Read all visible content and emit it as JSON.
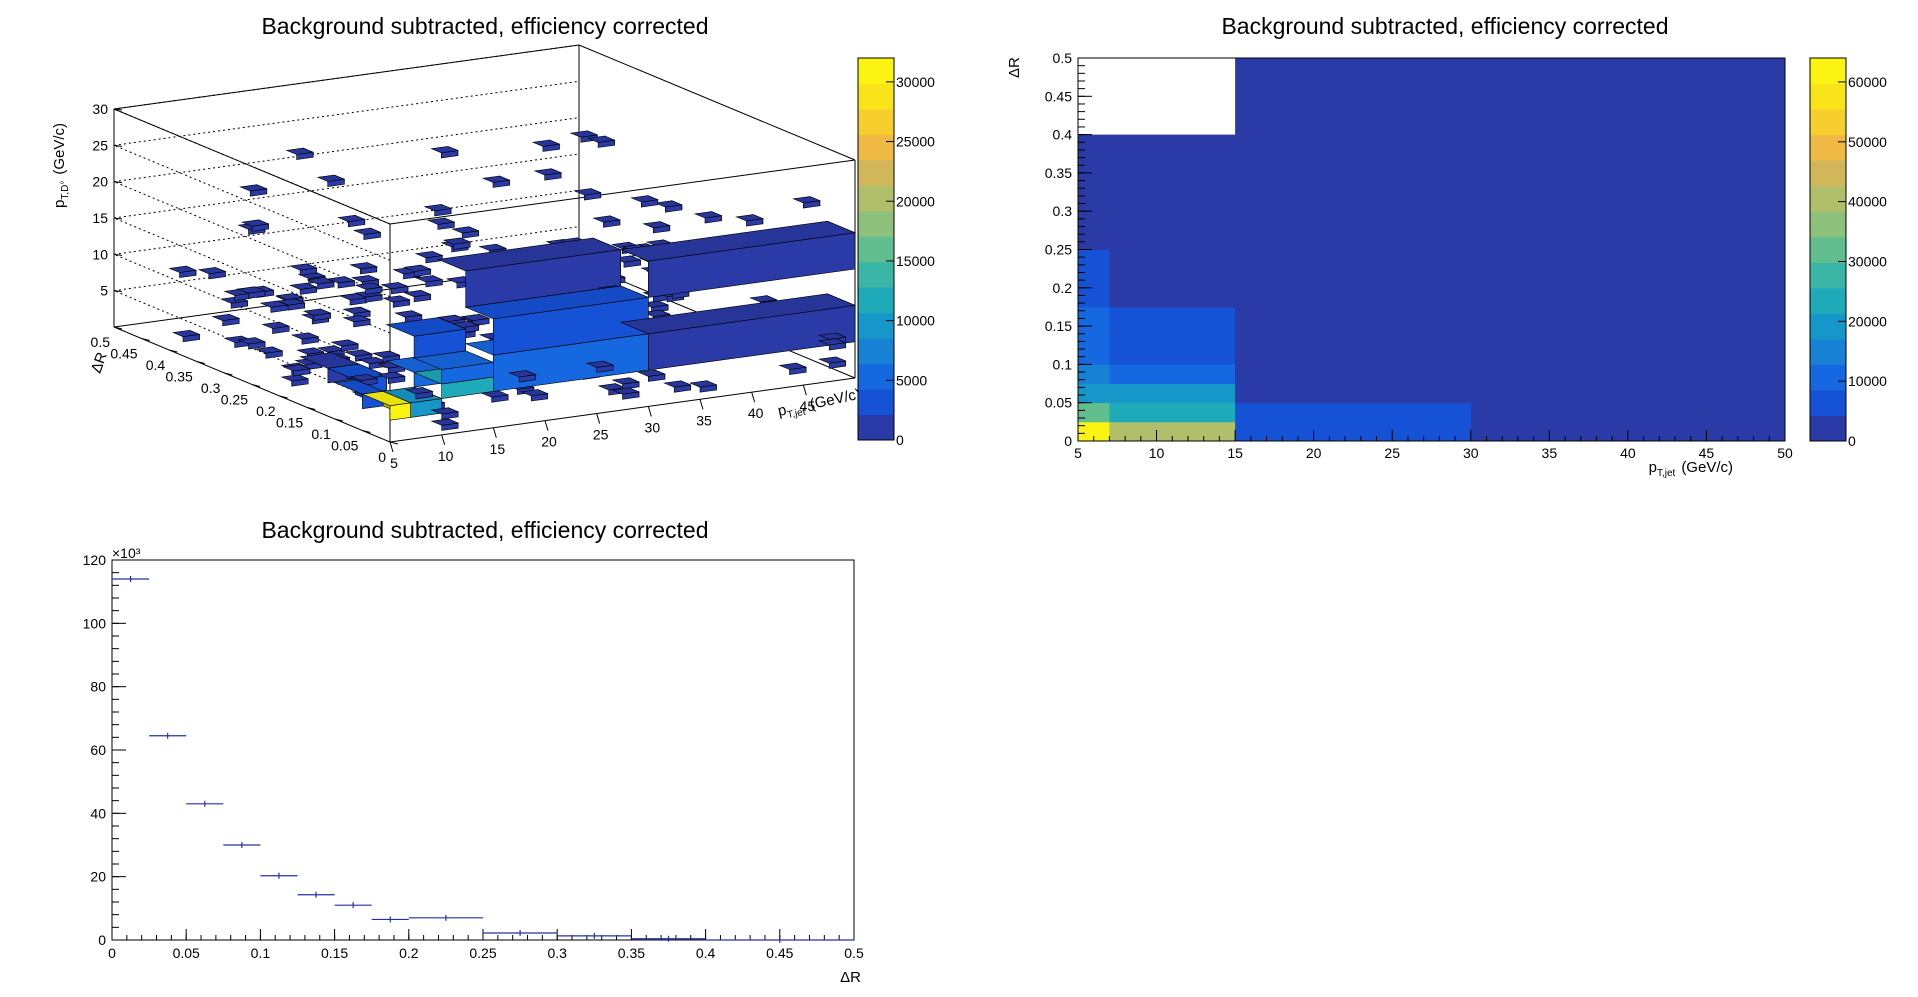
{
  "charts_meta": {
    "colors": {
      "palette": [
        "#2a3aa6",
        "#1652d6",
        "#1568e0",
        "#1781d6",
        "#1697c9",
        "#1eaab8",
        "#3bb6a6",
        "#62be8f",
        "#8ec17c",
        "#b1bf6b",
        "#d2b75a",
        "#f0b944",
        "#f6cf2f",
        "#f9e319",
        "#fbf311"
      ],
      "frame": "#000000",
      "errbar": "#2431a8"
    }
  },
  "chart_data": [
    {
      "id": "lego3d",
      "type": "lego3d",
      "title": "Background subtracted, efficiency corrected",
      "xlabel": "p",
      "xlabel_sub": "T,jet",
      "xlabel_unit": "(GeV/c)",
      "ylabel": "ΔR",
      "zlabel": "p",
      "zlabel_sub": "T,D°",
      "zlabel_unit": "(GeV/c)",
      "xlim": [
        5,
        50
      ],
      "ylim": [
        0,
        0.5
      ],
      "zlim": [
        0,
        30
      ],
      "x_ticks": [
        "5",
        "10",
        "15",
        "20",
        "25",
        "30",
        "35",
        "40",
        "45"
      ],
      "y_ticks": [
        "0",
        "0.05",
        "0.1",
        "0.15",
        "0.2",
        "0.25",
        "0.3",
        "0.35",
        "0.4",
        "0.45",
        "0.5"
      ],
      "z_ticks": [
        "5",
        "10",
        "15",
        "20",
        "25",
        "30"
      ],
      "colorbar": {
        "min": 0,
        "max": 32000,
        "ticks": [
          "0",
          "5000",
          "10000",
          "15000",
          "20000",
          "25000",
          "30000"
        ]
      },
      "boxes": [
        {
          "x": [
            5,
            7
          ],
          "y": [
            0,
            0.05
          ],
          "z": [
            3,
            5
          ],
          "v": 31000
        },
        {
          "x": [
            7,
            10
          ],
          "y": [
            0,
            0.05
          ],
          "z": [
            3,
            5
          ],
          "v": 9000
        },
        {
          "x": [
            10,
            15
          ],
          "y": [
            0,
            0.05
          ],
          "z": [
            5,
            7
          ],
          "v": 12000
        },
        {
          "x": [
            10,
            15
          ],
          "y": [
            0,
            0.05
          ],
          "z": [
            7,
            9
          ],
          "v": 6000
        },
        {
          "x": [
            10,
            15
          ],
          "y": [
            0.05,
            0.1
          ],
          "z": [
            5,
            7
          ],
          "v": 5000
        },
        {
          "x": [
            10,
            15
          ],
          "y": [
            0.05,
            0.1
          ],
          "z": [
            9,
            12
          ],
          "v": 4000
        },
        {
          "x": [
            15,
            30
          ],
          "y": [
            0,
            0.05
          ],
          "z": [
            5,
            10
          ],
          "v": 5000
        },
        {
          "x": [
            15,
            30
          ],
          "y": [
            0,
            0.05
          ],
          "z": [
            10,
            15
          ],
          "v": 2500
        },
        {
          "x": [
            30,
            50
          ],
          "y": [
            0,
            0.05
          ],
          "z": [
            5,
            10
          ],
          "v": 1500
        },
        {
          "x": [
            15,
            30
          ],
          "y": [
            0.05,
            0.1
          ],
          "z": [
            15,
            20
          ],
          "v": 1800
        },
        {
          "x": [
            30,
            50
          ],
          "y": [
            0,
            0.05
          ],
          "z": [
            15,
            20
          ],
          "v": 1400
        },
        {
          "x": [
            7,
            10
          ],
          "y": [
            0.1,
            0.15
          ],
          "z": [
            3,
            5
          ],
          "v": 3000
        },
        {
          "x": [
            7,
            10
          ],
          "y": [
            0.15,
            0.2
          ],
          "z": [
            3,
            5
          ],
          "v": 2000
        },
        {
          "x": [
            5,
            7
          ],
          "y": [
            0.05,
            0.1
          ],
          "z": [
            3,
            5
          ],
          "v": 3500
        }
      ],
      "scatter_count": 170
    },
    {
      "id": "colz",
      "type": "heatmap",
      "title": "Background subtracted, efficiency corrected",
      "xlabel": "p",
      "xlabel_sub": "T,jet",
      "xlabel_unit": "(GeV/c)",
      "ylabel": "ΔR",
      "xlim": [
        5,
        50
      ],
      "ylim": [
        0,
        0.5
      ],
      "x_ticks": [
        "5",
        "10",
        "15",
        "20",
        "25",
        "30",
        "35",
        "40",
        "45",
        "50"
      ],
      "y_ticks": [
        "0",
        "0.05",
        "0.1",
        "0.15",
        "0.2",
        "0.25",
        "0.3",
        "0.35",
        "0.4",
        "0.45",
        "0.5"
      ],
      "colorbar": {
        "min": 0,
        "max": 64000,
        "ticks": [
          "0",
          "10000",
          "20000",
          "30000",
          "40000",
          "50000",
          "60000"
        ]
      },
      "cells": [
        {
          "x": [
            5,
            7
          ],
          "y": [
            0,
            0.025
          ],
          "v": 62000
        },
        {
          "x": [
            7,
            15
          ],
          "y": [
            0,
            0.025
          ],
          "v": 42000
        },
        {
          "x": [
            5,
            7
          ],
          "y": [
            0.025,
            0.05
          ],
          "v": 30000
        },
        {
          "x": [
            7,
            15
          ],
          "y": [
            0.025,
            0.05
          ],
          "v": 22000
        },
        {
          "x": [
            5,
            7
          ],
          "y": [
            0.05,
            0.075
          ],
          "v": 20000
        },
        {
          "x": [
            7,
            15
          ],
          "y": [
            0.05,
            0.075
          ],
          "v": 18000
        },
        {
          "x": [
            5,
            7
          ],
          "y": [
            0.075,
            0.1
          ],
          "v": 13000
        },
        {
          "x": [
            7,
            15
          ],
          "y": [
            0.075,
            0.1
          ],
          "v": 12000
        },
        {
          "x": [
            5,
            7
          ],
          "y": [
            0.1,
            0.175
          ],
          "v": 9000
        },
        {
          "x": [
            7,
            15
          ],
          "y": [
            0.1,
            0.175
          ],
          "v": 8000
        },
        {
          "x": [
            5,
            7
          ],
          "y": [
            0.175,
            0.25
          ],
          "v": 8000
        },
        {
          "x": [
            7,
            15
          ],
          "y": [
            0.175,
            0.4
          ],
          "v": 2000
        },
        {
          "x": [
            5,
            7
          ],
          "y": [
            0.25,
            0.4
          ],
          "v": 2000
        },
        {
          "x": [
            15,
            30
          ],
          "y": [
            0,
            0.05
          ],
          "v": 7000
        },
        {
          "x": [
            15,
            30
          ],
          "y": [
            0.05,
            0.5
          ],
          "v": 1500
        },
        {
          "x": [
            30,
            50
          ],
          "y": [
            0,
            0.5
          ],
          "v": 1500
        }
      ]
    },
    {
      "id": "proj",
      "type": "scatter",
      "title": "Background subtracted, efficiency corrected",
      "xlabel": "ΔR",
      "ylabel": "",
      "exponent": "×10³",
      "xlim": [
        0,
        0.5
      ],
      "ylim": [
        0,
        120
      ],
      "x_ticks": [
        "0",
        "0.05",
        "0.1",
        "0.15",
        "0.2",
        "0.25",
        "0.3",
        "0.35",
        "0.4",
        "0.45",
        "0.5"
      ],
      "y_ticks": [
        "0",
        "20",
        "40",
        "60",
        "80",
        "100",
        "120"
      ],
      "points": [
        {
          "x0": 0,
          "x1": 0.025,
          "y": 114
        },
        {
          "x0": 0.025,
          "x1": 0.05,
          "y": 64.5
        },
        {
          "x0": 0.05,
          "x1": 0.075,
          "y": 43
        },
        {
          "x0": 0.075,
          "x1": 0.1,
          "y": 30
        },
        {
          "x0": 0.1,
          "x1": 0.125,
          "y": 20.3
        },
        {
          "x0": 0.125,
          "x1": 0.15,
          "y": 14.3
        },
        {
          "x0": 0.15,
          "x1": 0.175,
          "y": 11
        },
        {
          "x0": 0.175,
          "x1": 0.2,
          "y": 6.5
        },
        {
          "x0": 0.2,
          "x1": 0.25,
          "y": 7
        },
        {
          "x0": 0.25,
          "x1": 0.3,
          "y": 2.2
        },
        {
          "x0": 0.3,
          "x1": 0.35,
          "y": 1.3
        },
        {
          "x0": 0.35,
          "x1": 0.4,
          "y": 0.4
        },
        {
          "x0": 0.4,
          "x1": 0.5,
          "y": 0
        }
      ]
    }
  ]
}
